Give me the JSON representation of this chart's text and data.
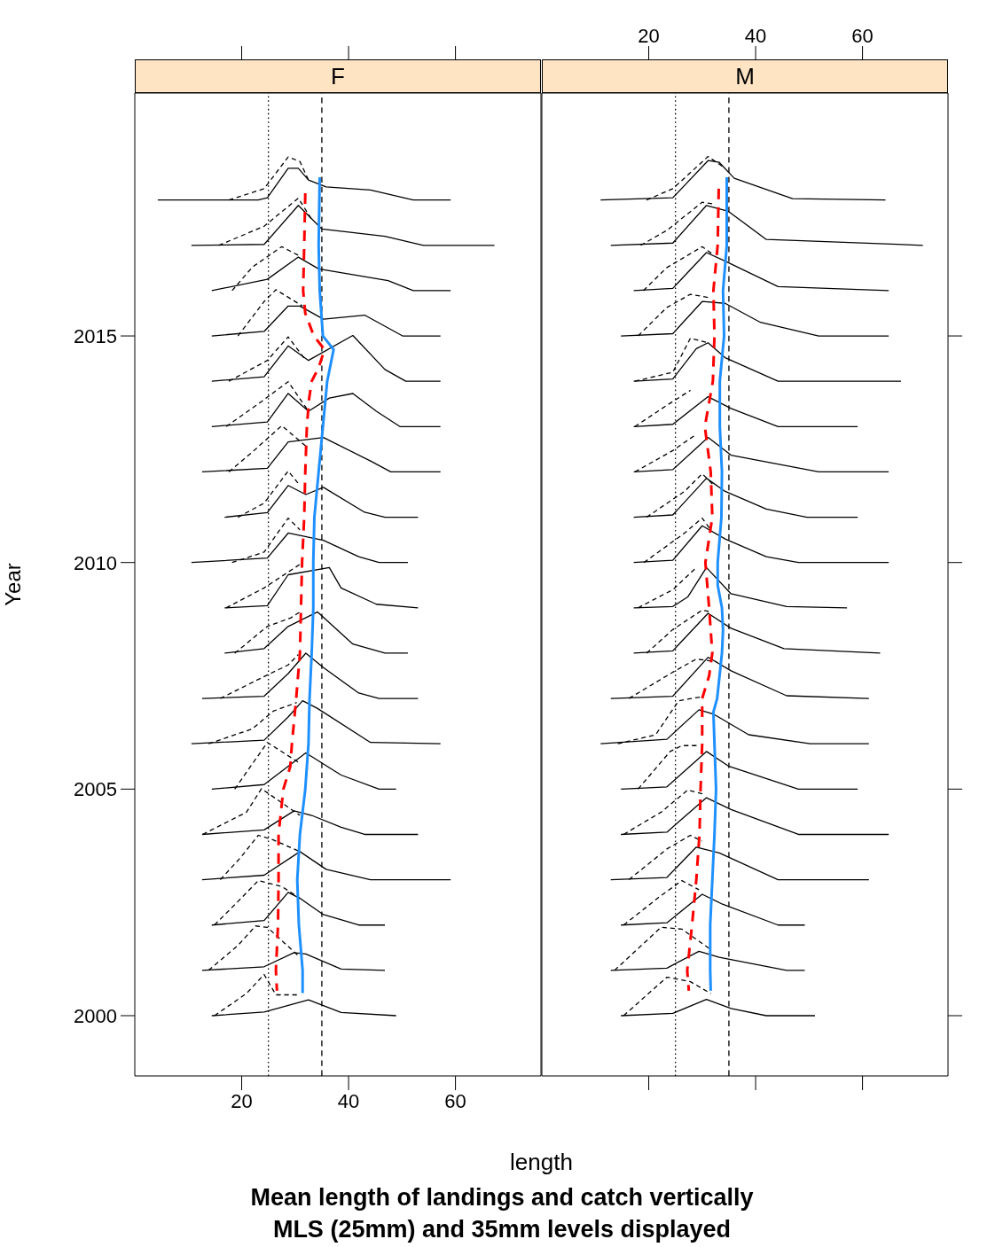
{
  "chart_data": [
    {
      "type": "line",
      "title": "F",
      "xlabel": "length",
      "ylabel": "Year",
      "annotations": [
        "Mean length of landings and catch vertically",
        "MLS (25mm) and 35mm levels displayed"
      ],
      "xlim": [
        0,
        76
      ],
      "xticks": [
        20,
        40,
        60
      ],
      "ylim": [
        1998.67,
        2020.36
      ],
      "yticks": [
        2000,
        2005,
        2010,
        2015
      ],
      "marker": "none",
      "ref_lines": [
        {
          "axis": "x",
          "value": 25,
          "line_style": "dotted",
          "color": "#000000"
        },
        {
          "axis": "x",
          "value": 35,
          "line_style": "dashed",
          "color": "#000000"
        }
      ],
      "series": [
        {
          "color": "#000000",
          "line_style": "solid",
          "x": [
            4.3,
            23.1,
            24.8,
            28.7,
            30.6,
            32.5,
            35.8,
            44.1,
            52.1,
            59.1
          ],
          "values": [
            2018,
            2018,
            2018.05,
            2018.7,
            2018.7,
            2018.44,
            2018.29,
            2018.22,
            2018,
            2018
          ]
        },
        {
          "color": "#000000",
          "line_style": "solid",
          "x": [
            10.6,
            24.2,
            30.6,
            35,
            46.8,
            54,
            67.3
          ],
          "values": [
            2017,
            2017.02,
            2017.88,
            2017.36,
            2017.2,
            2017,
            2017
          ]
        },
        {
          "color": "#000000",
          "line_style": "solid",
          "x": [
            14.4,
            24.8,
            30.6,
            34.4,
            47.4,
            52.1,
            59.1
          ],
          "values": [
            2016,
            2016.25,
            2016.74,
            2016.48,
            2016.22,
            2016,
            2016
          ]
        },
        {
          "color": "#000000",
          "line_style": "solid",
          "x": [
            14.4,
            24.2,
            28.7,
            30.9,
            35.3,
            43,
            50.1,
            57.2
          ],
          "values": [
            2015,
            2015.1,
            2015.66,
            2015.66,
            2015.37,
            2015.46,
            2015,
            2015
          ]
        },
        {
          "color": "#000000",
          "line_style": "solid",
          "x": [
            14.4,
            24.2,
            28.7,
            32.5,
            40.8,
            46.8,
            50.7,
            57.2
          ],
          "values": [
            2014,
            2014.1,
            2014.78,
            2014.46,
            2015.01,
            2014.26,
            2014,
            2014
          ]
        },
        {
          "color": "#000000",
          "line_style": "solid",
          "x": [
            14.4,
            24.8,
            28.7,
            32.5,
            36.4,
            40.8,
            45.2,
            49.6,
            57.2
          ],
          "values": [
            2013,
            2013.1,
            2013.73,
            2013.34,
            2013.63,
            2013.73,
            2013.34,
            2013,
            2013
          ]
        },
        {
          "color": "#000000",
          "line_style": "solid",
          "x": [
            12.6,
            24.8,
            28.7,
            35.3,
            44.1,
            47.9,
            57.2
          ],
          "values": [
            2012,
            2012.08,
            2012.66,
            2012.76,
            2012.24,
            2012,
            2012
          ]
        },
        {
          "color": "#000000",
          "line_style": "solid",
          "x": [
            16.8,
            24.8,
            28.7,
            32,
            35.3,
            43,
            46.8,
            53
          ],
          "values": [
            2011,
            2011.1,
            2011.7,
            2011.5,
            2011.66,
            2011.11,
            2011,
            2011
          ]
        },
        {
          "color": "#000000",
          "line_style": "solid",
          "x": [
            10.6,
            24.8,
            28.7,
            35.3,
            41.9,
            45.7,
            51.1
          ],
          "values": [
            2010,
            2010.1,
            2010.65,
            2010.49,
            2010.13,
            2010,
            2010
          ]
        },
        {
          "color": "#000000",
          "line_style": "solid",
          "x": [
            16.8,
            24.8,
            28.7,
            36.4,
            38.6,
            45.2,
            53
          ],
          "values": [
            2009,
            2009.05,
            2009.73,
            2009.89,
            2009.44,
            2009.08,
            2009
          ]
        },
        {
          "color": "#000000",
          "line_style": "solid",
          "x": [
            16.8,
            24.2,
            28.7,
            34.2,
            40.8,
            46.8,
            51.1
          ],
          "values": [
            2008,
            2008.1,
            2008.59,
            2008.91,
            2008.2,
            2008,
            2008
          ]
        },
        {
          "color": "#000000",
          "line_style": "solid",
          "x": [
            12.6,
            24.2,
            28.7,
            32,
            35.3,
            41.9,
            45.7,
            53
          ],
          "values": [
            2007,
            2007.05,
            2007.55,
            2008,
            2007.68,
            2007.12,
            2007,
            2007
          ]
        },
        {
          "color": "#000000",
          "line_style": "solid",
          "x": [
            10.6,
            24.2,
            28.7,
            31.4,
            34.2,
            44.1,
            57.2
          ],
          "values": [
            2006,
            2006.08,
            2006.59,
            2006.95,
            2006.78,
            2006.03,
            2006
          ]
        },
        {
          "color": "#000000",
          "line_style": "solid",
          "x": [
            14.4,
            24.2,
            32,
            38.6,
            45.7,
            48.9
          ],
          "values": [
            2005,
            2005.1,
            2005.8,
            2005.31,
            2005,
            2005
          ]
        },
        {
          "color": "#000000",
          "line_style": "solid",
          "x": [
            12.6,
            24.2,
            29.8,
            33.1,
            38.6,
            43,
            53
          ],
          "values": [
            2004,
            2004.1,
            2004.52,
            2004.42,
            2004.16,
            2004,
            2004
          ]
        },
        {
          "color": "#000000",
          "line_style": "solid",
          "x": [
            12.6,
            24.2,
            30.9,
            35.8,
            44.1,
            59.1
          ],
          "values": [
            2003,
            2003.1,
            2003.62,
            2003.23,
            2003,
            2003
          ]
        },
        {
          "color": "#000000",
          "line_style": "solid",
          "x": [
            14.4,
            24.2,
            28.7,
            30.9,
            35.3,
            41.9,
            46.8
          ],
          "values": [
            2002,
            2002.1,
            2002.72,
            2002.59,
            2002.23,
            2002,
            2002
          ]
        },
        {
          "color": "#000000",
          "line_style": "solid",
          "x": [
            12.6,
            24.2,
            29.8,
            32,
            38.6,
            46.8
          ],
          "values": [
            2001,
            2001.08,
            2001.39,
            2001.36,
            2001.03,
            2001
          ]
        },
        {
          "color": "#000000",
          "line_style": "solid",
          "x": [
            14.4,
            24.2,
            32.5,
            38.6,
            48.9
          ],
          "values": [
            2000,
            2000.08,
            2000.35,
            2000.07,
            2000
          ]
        },
        {
          "color": "#000000",
          "line_style": "dashed",
          "x": [
            17.6,
            24.2,
            28.7,
            30.9,
            32.5
          ],
          "values": [
            2018,
            2018.25,
            2018.95,
            2018.85,
            2018.44
          ]
        },
        {
          "color": "#000000",
          "line_style": "dashed",
          "x": [
            15.7,
            24.2,
            30.6,
            33
          ],
          "values": [
            2017,
            2017.42,
            2018.04,
            2017.59
          ]
        },
        {
          "color": "#000000",
          "line_style": "dashed",
          "x": [
            18.2,
            22,
            27.5,
            30.6
          ],
          "values": [
            2016,
            2016.52,
            2016.97,
            2016.78
          ]
        },
        {
          "color": "#000000",
          "line_style": "dashed",
          "x": [
            19.3,
            24.2,
            26.4,
            31.4
          ],
          "values": [
            2015,
            2015.76,
            2016.02,
            2015.66
          ]
        },
        {
          "color": "#000000",
          "line_style": "dashed",
          "x": [
            17.6,
            24.8,
            28.7,
            32
          ],
          "values": [
            2014,
            2014.46,
            2014.98,
            2014.46
          ]
        },
        {
          "color": "#000000",
          "line_style": "dashed",
          "x": [
            17.1,
            23.1,
            28.7,
            32.5
          ],
          "values": [
            2013,
            2013.5,
            2013.99,
            2013.34
          ]
        },
        {
          "color": "#000000",
          "line_style": "dashed",
          "x": [
            17.6,
            22,
            27.5,
            32
          ],
          "values": [
            2012,
            2012.44,
            2013.02,
            2012.57
          ]
        },
        {
          "color": "#000000",
          "line_style": "dashed",
          "x": [
            19.3,
            24.2,
            28.7,
            30.9
          ],
          "values": [
            2011,
            2011.31,
            2012.02,
            2011.7
          ]
        },
        {
          "color": "#000000",
          "line_style": "dashed",
          "x": [
            18.2,
            24.2,
            28.7,
            30.9
          ],
          "values": [
            2010,
            2010.23,
            2010.98,
            2010.72
          ]
        },
        {
          "color": "#000000",
          "line_style": "dashed",
          "x": [
            17.1,
            24.2,
            30.9
          ],
          "values": [
            2009,
            2009.44,
            2009.96
          ]
        },
        {
          "color": "#000000",
          "line_style": "dashed",
          "x": [
            18.7,
            24.8,
            29.2,
            30.9
          ],
          "values": [
            2008,
            2008.59,
            2008.78,
            2008.91
          ]
        },
        {
          "color": "#000000",
          "line_style": "dashed",
          "x": [
            16,
            23.1,
            28.7,
            30.6
          ],
          "values": [
            2007,
            2007.42,
            2007.74,
            2007.97
          ]
        },
        {
          "color": "#000000",
          "line_style": "dashed",
          "x": [
            13.8,
            22,
            25.9,
            30.3
          ],
          "values": [
            2006,
            2006.33,
            2006.72,
            2006.91
          ]
        },
        {
          "color": "#000000",
          "line_style": "dashed",
          "x": [
            18.7,
            24.8,
            30.9
          ],
          "values": [
            2005,
            2006.03,
            2005.57
          ]
        },
        {
          "color": "#000000",
          "line_style": "dashed",
          "x": [
            12.7,
            20.9,
            23.7,
            30.9
          ],
          "values": [
            2004,
            2004.49,
            2005.01,
            2004.42
          ]
        },
        {
          "color": "#000000",
          "line_style": "dashed",
          "x": [
            16,
            19.8,
            23.1,
            25.9,
            30.9
          ],
          "values": [
            2003,
            2003.49,
            2003.98,
            2003.88,
            2003.62
          ]
        },
        {
          "color": "#000000",
          "line_style": "dashed",
          "x": [
            14.9,
            19.3,
            23.1,
            27.5,
            30.9
          ],
          "values": [
            2002,
            2002.52,
            2002.98,
            2002.85,
            2002.59
          ]
        },
        {
          "color": "#000000",
          "line_style": "dashed",
          "x": [
            13.8,
            19.3,
            22.6,
            24.8,
            30.9
          ],
          "values": [
            2001,
            2001.55,
            2001.98,
            2001.95,
            2001.29
          ]
        },
        {
          "color": "#000000",
          "line_style": "dashed",
          "x": [
            14.9,
            20.9,
            24.2,
            26.4,
            30.9
          ],
          "values": [
            2000,
            2000.49,
            2000.91,
            2000.46,
            2000.46
          ]
        },
        {
          "color": "#ff0000",
          "line_style": "dashed",
          "x": [
            31.9,
            31.7,
            31.5,
            31.9,
            33.5,
            35.5,
            34.4,
            33.1,
            32.6,
            32.2,
            31.9,
            31.7,
            31.3,
            31.1,
            30.9,
            30.2,
            29.4,
            29.1,
            27.8,
            26.9,
            26.9,
            26.8,
            26.4,
            26.6
          ],
          "values": [
            2018.15,
            2017,
            2016,
            2015.5,
            2015,
            2014.7,
            2014.3,
            2014,
            2013.6,
            2013,
            2012,
            2011,
            2010,
            2009,
            2008,
            2007,
            2006,
            2005.5,
            2005,
            2004,
            2003,
            2002,
            2001,
            2000.55
          ]
        },
        {
          "color": "#1e90ff",
          "line_style": "solid",
          "x": [
            34.6,
            34.4,
            34.6,
            35.2,
            37.2,
            36,
            35.2,
            34.4,
            33.6,
            33.4,
            33.4,
            33.1,
            32.7,
            32.5,
            31.9,
            30.9,
            30.4,
            30.7,
            31.4,
            31.4
          ],
          "values": [
            2018.5,
            2017,
            2016,
            2015,
            2014.7,
            2014,
            2013,
            2012,
            2011,
            2010,
            2009,
            2008,
            2007,
            2006,
            2005,
            2004,
            2003,
            2002,
            2001,
            2000.5
          ]
        }
      ]
    },
    {
      "type": "line",
      "title": "M",
      "xlim": [
        0,
        76
      ],
      "xticks": [
        20,
        40,
        60
      ],
      "ylim": [
        1998.67,
        2020.36
      ],
      "yticks": [
        2000,
        2005,
        2010,
        2015
      ],
      "tick_labels": "x",
      "marker": "none",
      "ref_lines": [
        {
          "axis": "x",
          "value": 25,
          "line_style": "dotted",
          "color": "#000000"
        },
        {
          "axis": "x",
          "value": 35,
          "line_style": "dashed",
          "color": "#000000"
        }
      ],
      "series": [
        {
          "color": "#000000",
          "line_style": "solid",
          "x": [
            11,
            24.5,
            31.1,
            33.2,
            36,
            46.9,
            64.3
          ],
          "values": [
            2018,
            2018.05,
            2018.87,
            2018.83,
            2018.48,
            2018.03,
            2018
          ]
        },
        {
          "color": "#000000",
          "line_style": "solid",
          "x": [
            12.9,
            24.5,
            30.8,
            34.9,
            42,
            71.3
          ],
          "values": [
            2017,
            2017.05,
            2017.88,
            2017.75,
            2017.13,
            2017
          ]
        },
        {
          "color": "#000000",
          "line_style": "solid",
          "x": [
            17.2,
            24.5,
            30.8,
            34.3,
            44.2,
            64.9
          ],
          "values": [
            2016,
            2016.05,
            2016.84,
            2016.65,
            2016.09,
            2016
          ]
        },
        {
          "color": "#000000",
          "line_style": "solid",
          "x": [
            14.8,
            24.5,
            30,
            34.3,
            40.9,
            51.8,
            64.9
          ],
          "values": [
            2015,
            2015.05,
            2015.76,
            2015.72,
            2015.3,
            2015,
            2015
          ]
        },
        {
          "color": "#000000",
          "line_style": "solid",
          "x": [
            17.2,
            24.5,
            28.9,
            31.1,
            34.3,
            44.2,
            67.2
          ],
          "values": [
            2014,
            2014.05,
            2014.72,
            2014.85,
            2014.52,
            2014,
            2014
          ]
        },
        {
          "color": "#000000",
          "line_style": "solid",
          "x": [
            17.2,
            24.5,
            31.1,
            35.4,
            44.2,
            59.1
          ],
          "values": [
            2013,
            2013.05,
            2013.66,
            2013.4,
            2013,
            2013
          ]
        },
        {
          "color": "#000000",
          "line_style": "solid",
          "x": [
            17.2,
            24.5,
            31.1,
            35.4,
            51.8,
            64.9
          ],
          "values": [
            2012,
            2012.05,
            2012.76,
            2012.37,
            2012,
            2012
          ]
        },
        {
          "color": "#000000",
          "line_style": "solid",
          "x": [
            17.2,
            24.5,
            30.8,
            34.3,
            42,
            49.6,
            59.1
          ],
          "values": [
            2011,
            2011.05,
            2011.86,
            2011.57,
            2011.18,
            2011,
            2011
          ]
        },
        {
          "color": "#000000",
          "line_style": "solid",
          "x": [
            17.2,
            24.5,
            30,
            34.3,
            42,
            48,
            64.9
          ],
          "values": [
            2010,
            2010.05,
            2010.81,
            2010.52,
            2010.13,
            2010,
            2010
          ]
        },
        {
          "color": "#000000",
          "line_style": "solid",
          "x": [
            17.2,
            24.5,
            27.3,
            30.8,
            35.4,
            45.8,
            57.1
          ],
          "values": [
            2009,
            2009.03,
            2009.24,
            2009.89,
            2009.31,
            2009.03,
            2009
          ]
        },
        {
          "color": "#000000",
          "line_style": "solid",
          "x": [
            17.2,
            24.5,
            31.1,
            35.4,
            45.3,
            63.3
          ],
          "values": [
            2008,
            2008.05,
            2008.88,
            2008.55,
            2008.1,
            2008
          ]
        },
        {
          "color": "#000000",
          "line_style": "solid",
          "x": [
            12.9,
            24.5,
            31.1,
            35.4,
            45.8,
            61.2
          ],
          "values": [
            2007,
            2007.05,
            2007.91,
            2007.61,
            2007.06,
            2007
          ]
        },
        {
          "color": "#000000",
          "line_style": "solid",
          "x": [
            11,
            23.4,
            29.4,
            32.2,
            38.7,
            50.2,
            61.2
          ],
          "values": [
            2006,
            2006.1,
            2006.75,
            2006.65,
            2006.2,
            2006,
            2006
          ]
        },
        {
          "color": "#000000",
          "line_style": "solid",
          "x": [
            14.8,
            23.4,
            30.8,
            34.9,
            48,
            59.1
          ],
          "values": [
            2005,
            2005.05,
            2005.83,
            2005.51,
            2005,
            2005
          ]
        },
        {
          "color": "#000000",
          "line_style": "solid",
          "x": [
            14.8,
            23.4,
            30.8,
            35.4,
            48,
            64.9
          ],
          "values": [
            2004,
            2004.05,
            2004.81,
            2004.55,
            2004,
            2004
          ]
        },
        {
          "color": "#000000",
          "line_style": "solid",
          "x": [
            12.9,
            23.4,
            28.9,
            33.2,
            44.2,
            61.2
          ],
          "values": [
            2003,
            2003.05,
            2003.72,
            2003.59,
            2003,
            2003
          ]
        },
        {
          "color": "#000000",
          "line_style": "solid",
          "x": [
            14.8,
            23.4,
            30,
            33.8,
            44.2,
            49.2
          ],
          "values": [
            2002,
            2002.05,
            2002.68,
            2002.46,
            2002,
            2002
          ]
        },
        {
          "color": "#000000",
          "line_style": "solid",
          "x": [
            12.9,
            23.4,
            29.4,
            33.2,
            45.8,
            49.2
          ],
          "values": [
            2001,
            2001.05,
            2001.42,
            2001.29,
            2001,
            2001
          ]
        },
        {
          "color": "#000000",
          "line_style": "solid",
          "x": [
            14.8,
            24.5,
            30.8,
            35.4,
            42,
            51.1
          ],
          "values": [
            2000,
            2000.05,
            2000.36,
            2000.16,
            2000,
            2000
          ]
        },
        {
          "color": "#000000",
          "line_style": "dashed",
          "x": [
            19.6,
            24.5,
            31.1,
            34.3
          ],
          "values": [
            2018,
            2018.25,
            2018.96,
            2018.7
          ]
        },
        {
          "color": "#000000",
          "line_style": "dashed",
          "x": [
            18.5,
            23.4,
            30,
            32.2
          ],
          "values": [
            2017,
            2017.33,
            2017.95,
            2017.91
          ]
        },
        {
          "color": "#000000",
          "line_style": "dashed",
          "x": [
            19,
            23.4,
            30,
            32.2
          ],
          "values": [
            2016,
            2016.51,
            2016.97,
            2016.78
          ]
        },
        {
          "color": "#000000",
          "line_style": "dashed",
          "x": [
            18,
            23.4,
            27.8,
            31.1
          ],
          "values": [
            2015,
            2015.63,
            2015.92,
            2015.85
          ]
        },
        {
          "color": "#000000",
          "line_style": "dashed",
          "x": [
            17.4,
            24.5,
            27.8,
            31.1
          ],
          "values": [
            2014,
            2014.2,
            2014.95,
            2014.85
          ]
        },
        {
          "color": "#000000",
          "line_style": "dashed",
          "x": [
            17.4,
            23.4,
            27.8
          ],
          "values": [
            2013,
            2013.47,
            2013.8
          ]
        },
        {
          "color": "#000000",
          "line_style": "dashed",
          "x": [
            17.4,
            24.5,
            28.9
          ],
          "values": [
            2012,
            2012.47,
            2012.83
          ]
        },
        {
          "color": "#000000",
          "line_style": "dashed",
          "x": [
            19.6,
            26.7,
            30,
            32.2
          ],
          "values": [
            2011,
            2011.57,
            2011.96,
            2011.7
          ]
        },
        {
          "color": "#000000",
          "line_style": "dashed",
          "x": [
            19.1,
            26.7,
            30,
            31.6
          ],
          "values": [
            2010,
            2010.65,
            2010.98,
            2010.72
          ]
        },
        {
          "color": "#000000",
          "line_style": "dashed",
          "x": [
            18,
            24.5,
            28.9
          ],
          "values": [
            2009,
            2009.4,
            2009.89
          ]
        },
        {
          "color": "#000000",
          "line_style": "dashed",
          "x": [
            19.6,
            24.5,
            30,
            31.6
          ],
          "values": [
            2008,
            2008.52,
            2008.95,
            2008.91
          ]
        },
        {
          "color": "#000000",
          "line_style": "dashed",
          "x": [
            16.3,
            24.5,
            28.9,
            32.7
          ],
          "values": [
            2007,
            2007.58,
            2007.87,
            2007.81
          ]
        },
        {
          "color": "#000000",
          "line_style": "dashed",
          "x": [
            14.2,
            21.3,
            25.6,
            30
          ],
          "values": [
            2006,
            2006.2,
            2006.95,
            2007.04
          ]
        },
        {
          "color": "#000000",
          "line_style": "dashed",
          "x": [
            18,
            24,
            26.2,
            29.4
          ],
          "values": [
            2005,
            2005.83,
            2005.96,
            2005.96
          ]
        },
        {
          "color": "#000000",
          "line_style": "dashed",
          "x": [
            15.3,
            22.3,
            27.3,
            30.5
          ],
          "values": [
            2004,
            2004.49,
            2004.98,
            2004.88
          ]
        },
        {
          "color": "#000000",
          "line_style": "dashed",
          "x": [
            16.3,
            23.4,
            27.8,
            30
          ],
          "values": [
            2003,
            2003.68,
            2003.98,
            2003.85
          ]
        },
        {
          "color": "#000000",
          "line_style": "dashed",
          "x": [
            15.3,
            22.3,
            26.2,
            29.4
          ],
          "values": [
            2002,
            2002.65,
            2002.98,
            2002.78
          ]
        },
        {
          "color": "#000000",
          "line_style": "dashed",
          "x": [
            13.6,
            22.3,
            26.2,
            31.6
          ],
          "values": [
            2001,
            2001.95,
            2001.91,
            2001.46
          ]
        },
        {
          "color": "#000000",
          "line_style": "dashed",
          "x": [
            15.3,
            23.4,
            27.8,
            31.6
          ],
          "values": [
            2000,
            2000.85,
            2000.75,
            2000.49
          ]
        },
        {
          "color": "#ff0000",
          "line_style": "dashed",
          "x": [
            33.1,
            32.9,
            32.1,
            32.3,
            32,
            30.5,
            31.6,
            31.9,
            30.6,
            31.3,
            31.9,
            31.3,
            30,
            30,
            29.7,
            29.5,
            28.9,
            28.1,
            27.2,
            27.5
          ],
          "values": [
            2018.25,
            2017,
            2016,
            2015,
            2014,
            2013,
            2012,
            2011,
            2010,
            2009,
            2008,
            2007.5,
            2007,
            2006,
            2005,
            2004,
            2003,
            2002,
            2001,
            2000.55
          ]
        },
        {
          "color": "#1e90ff",
          "line_style": "solid",
          "x": [
            34.6,
            34.6,
            33.9,
            34.1,
            33.3,
            33.3,
            33.7,
            33.6,
            32.9,
            32.9,
            33.7,
            33.9,
            33.7,
            32.8,
            32.1,
            32.3,
            32.6,
            32.3,
            31.9,
            31.5,
            31.5,
            31.6
          ],
          "values": [
            2018.5,
            2017,
            2016,
            2015,
            2014,
            2013,
            2012,
            2011,
            2010,
            2009.5,
            2009,
            2008.5,
            2008,
            2007,
            2006.7,
            2006,
            2005,
            2004,
            2003,
            2002,
            2001,
            2000.55
          ]
        }
      ]
    }
  ]
}
